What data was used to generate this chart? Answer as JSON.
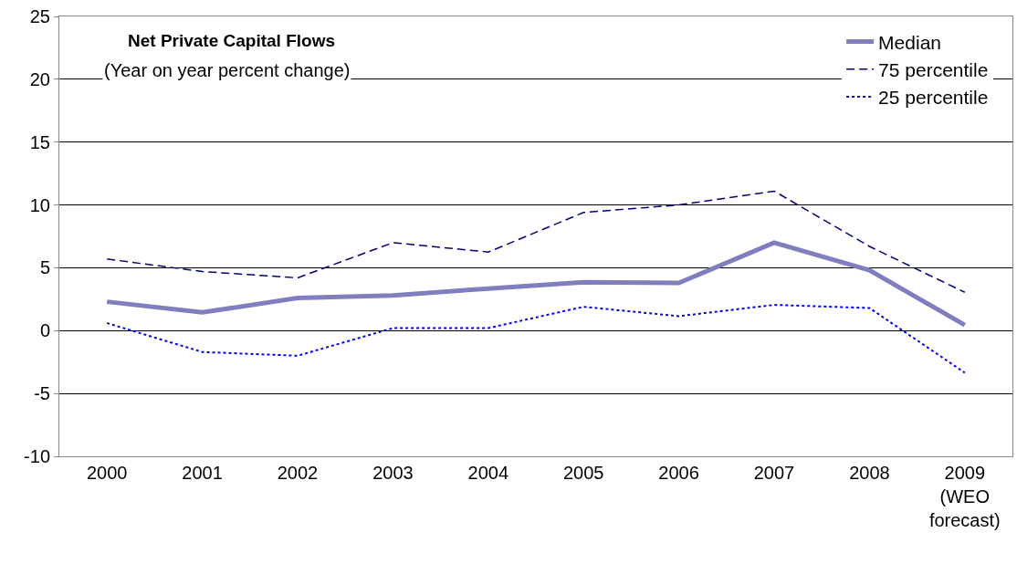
{
  "chart_data": {
    "type": "line",
    "title": "Net Private Capital Flows",
    "subtitle": "(Year on year percent change)",
    "categories": [
      "2000",
      "2001",
      "2002",
      "2003",
      "2004",
      "2005",
      "2006",
      "2007",
      "2008",
      "2009 (WEO forecast)"
    ],
    "series": [
      {
        "name": "Median",
        "color": "#7f7fbf",
        "line_style": "solid",
        "values": [
          2.3,
          1.45,
          2.6,
          2.8,
          3.35,
          3.85,
          3.8,
          7.0,
          4.8,
          0.45
        ]
      },
      {
        "name": "75 percentile",
        "color": "#000080",
        "line_style": "dashed",
        "values": [
          5.7,
          4.7,
          4.2,
          7.0,
          6.25,
          9.4,
          10.0,
          11.1,
          6.7,
          3.05
        ]
      },
      {
        "name": "25 percentile",
        "color": "#0000ff",
        "line_style": "dotted",
        "values": [
          0.6,
          -1.7,
          -2.0,
          0.2,
          0.2,
          1.9,
          1.15,
          2.05,
          1.8,
          -3.35
        ]
      }
    ],
    "ylim": [
      -10,
      25
    ],
    "yticks": [
      -10,
      -5,
      0,
      5,
      10,
      15,
      20,
      25
    ],
    "grid": "y",
    "legend": "top right",
    "marker": "none"
  }
}
